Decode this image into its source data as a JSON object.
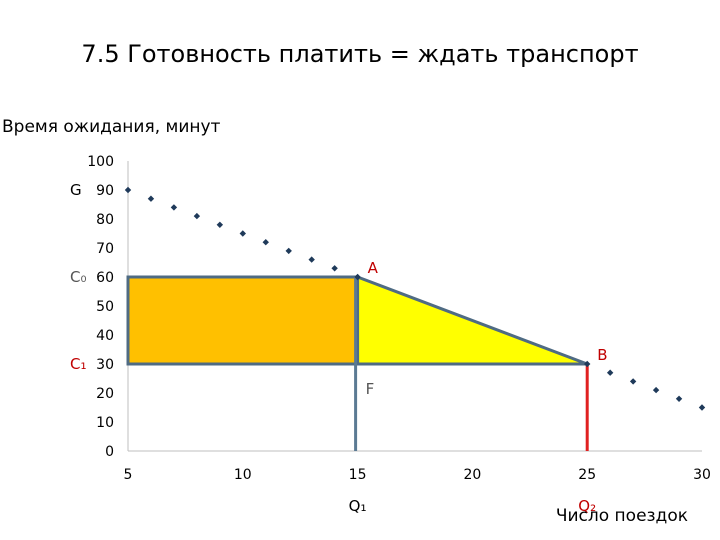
{
  "slide": {
    "title": "7.5 Готовность платить = ждать транспорт"
  },
  "chart_data": {
    "type": "scatter",
    "title": "7.5 Готовность платить = ждать транспорт",
    "ylabel": "Время ожидания, минут",
    "xlabel": "Число поездок",
    "xlim": [
      5,
      30
    ],
    "ylim": [
      0,
      100
    ],
    "xticks": [
      5,
      10,
      15,
      20,
      25,
      30
    ],
    "yticks": [
      0,
      10,
      20,
      30,
      40,
      50,
      60,
      70,
      80,
      90,
      100
    ],
    "grid": false,
    "series": [
      {
        "points": [
          [
            5,
            90
          ],
          [
            6,
            87
          ],
          [
            7,
            84
          ],
          [
            8,
            81
          ],
          [
            9,
            78
          ],
          [
            10,
            75
          ],
          [
            11,
            72
          ],
          [
            12,
            69
          ],
          [
            13,
            66
          ],
          [
            14,
            63
          ],
          [
            15,
            60
          ],
          [
            25,
            30
          ],
          [
            26,
            27
          ],
          [
            27,
            24
          ],
          [
            28,
            21
          ],
          [
            29,
            18
          ],
          [
            30,
            15
          ]
        ]
      }
    ],
    "rectangle": {
      "x": [
        5,
        15
      ],
      "y": [
        30,
        60
      ],
      "color": "#FFC000"
    },
    "triangle": {
      "points": [
        [
          15,
          60
        ],
        [
          15,
          30
        ],
        [
          25,
          30
        ]
      ],
      "color": "#FFFF00"
    },
    "vlines": [
      {
        "x": 15,
        "y": [
          0,
          60
        ],
        "color": "#5B7A93"
      },
      {
        "x": 25,
        "y": [
          0,
          30
        ],
        "color": "#E02020"
      }
    ],
    "annotations": [
      {
        "text": "G",
        "x": 5,
        "y": 90,
        "side": "left",
        "color": "#000000"
      },
      {
        "text": "C₀",
        "x": 5,
        "y": 60,
        "side": "left",
        "color": "#555555"
      },
      {
        "text": "C₁",
        "x": 5,
        "y": 30,
        "side": "left",
        "color": "#C00000"
      },
      {
        "text": "A",
        "x": 15,
        "y": 60,
        "side": "right",
        "color": "#C00000"
      },
      {
        "text": "B",
        "x": 25,
        "y": 30,
        "side": "right",
        "color": "#C00000"
      },
      {
        "text": "F",
        "x": 15,
        "y": 30,
        "side": "below",
        "color": "#555555"
      },
      {
        "text": "Q₁",
        "x": 15,
        "y": 0,
        "side": "bottom",
        "color": "#000000"
      },
      {
        "text": "Q₂",
        "x": 25,
        "y": 0,
        "side": "bottom",
        "color": "#C00000"
      }
    ],
    "colors": {
      "points": "#1F3A5A",
      "axis": "#BFBFBF",
      "rect": "#FFC000",
      "triangle": "#FFFF00",
      "outline": "#4F6B83",
      "q1_line": "#5B7A93",
      "q2_line": "#E02020"
    }
  }
}
